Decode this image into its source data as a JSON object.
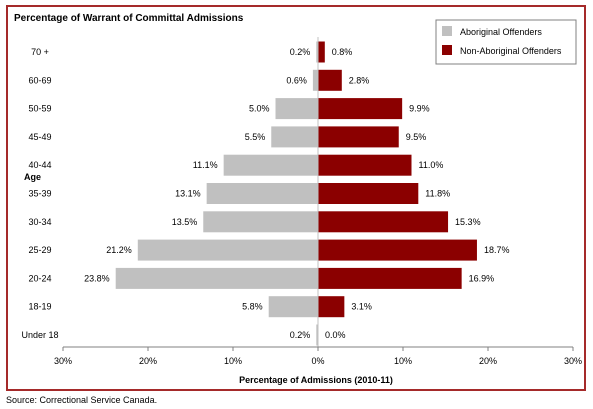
{
  "chart_data": {
    "type": "bar",
    "orientation": "horizontal-diverging",
    "title": "Percentage of Warrant of Committal Admissions",
    "xlabel": "Percentage of Admissions (2010-11)",
    "ylabel": "Age",
    "categories": [
      "70 +",
      "60-69",
      "50-59",
      "45-49",
      "40-44",
      "35-39",
      "30-34",
      "25-29",
      "20-24",
      "18-19",
      "Under 18"
    ],
    "series": [
      {
        "name": "Aboriginal Offenders",
        "color": "#c0c0c0",
        "side": "left",
        "values": [
          0.2,
          0.6,
          5.0,
          5.5,
          11.1,
          13.1,
          13.5,
          21.2,
          23.8,
          5.8,
          0.2
        ],
        "labels": [
          "0.2%",
          "0.6%",
          "5.0%",
          "5.5%",
          "11.1%",
          "13.1%",
          "13.5%",
          "21.2%",
          "23.8%",
          "5.8%",
          "0.2%"
        ]
      },
      {
        "name": "Non-Aboriginal Offenders",
        "color": "#8b0000",
        "side": "right",
        "values": [
          0.8,
          2.8,
          9.9,
          9.5,
          11.0,
          11.8,
          15.3,
          18.7,
          16.9,
          3.1,
          0.0
        ],
        "labels": [
          "0.8%",
          "2.8%",
          "9.9%",
          "9.5%",
          "11.0%",
          "11.8%",
          "15.3%",
          "18.7%",
          "16.9%",
          "3.1%",
          "0.0%"
        ]
      }
    ],
    "xlim": [
      -30,
      30
    ],
    "xticks": [
      -30,
      -20,
      -10,
      0,
      10,
      20,
      30
    ],
    "xtick_labels": [
      "30%",
      "20%",
      "10%",
      "0%",
      "10%",
      "20%",
      "30%"
    ],
    "grid": false,
    "legend_position": "top-right"
  },
  "source": "Source:  Correctional Service Canada."
}
